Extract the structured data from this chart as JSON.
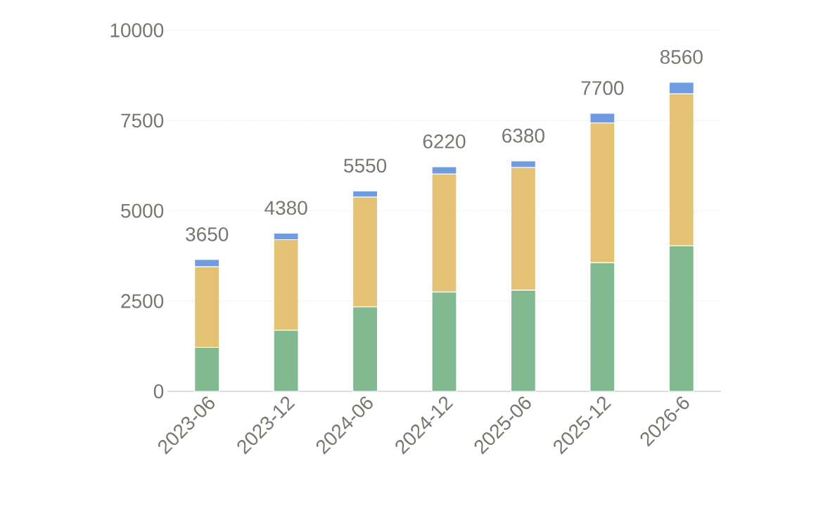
{
  "chart_data": {
    "type": "bar",
    "stacked": true,
    "categories": [
      "2023-06",
      "2023-12",
      "2024-06",
      "2024-12",
      "2025-06",
      "2025-12",
      "2026-6"
    ],
    "series": [
      {
        "color": "#82b991",
        "values": [
          1220,
          1690,
          2340,
          2750,
          2800,
          3560,
          4030
        ]
      },
      {
        "color": "#e3c175",
        "values": [
          2230,
          2510,
          3040,
          3270,
          3400,
          3870,
          4210
        ]
      },
      {
        "color": "#6f9be0",
        "values": [
          200,
          180,
          170,
          200,
          180,
          270,
          320
        ]
      }
    ],
    "totals": [
      "3650",
      "4380",
      "5550",
      "6220",
      "6380",
      "7700",
      "8560"
    ],
    "ylim": [
      0,
      10000
    ],
    "yticks": [
      0,
      2500,
      5000,
      7500,
      10000
    ],
    "grid": "y"
  }
}
